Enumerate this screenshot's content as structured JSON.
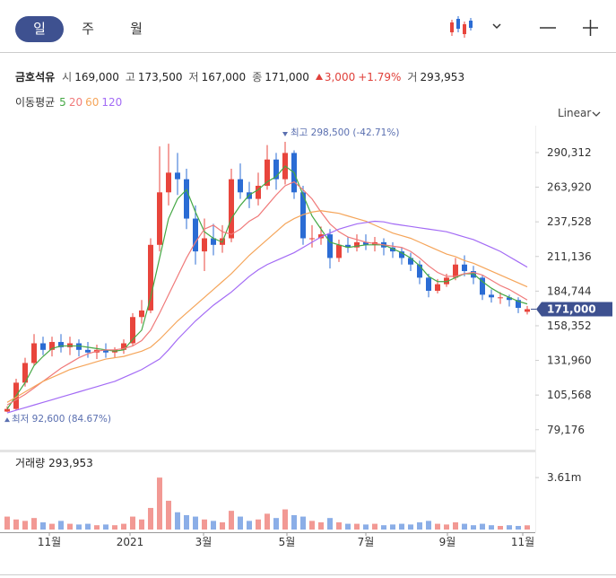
{
  "tabs": [
    "일",
    "주",
    "월"
  ],
  "header": {
    "name": "금호석유",
    "open_label": "시",
    "open": "169,000",
    "high_label": "고",
    "high": "173,500",
    "low_label": "저",
    "low": "167,000",
    "close_label": "종",
    "close": "171,000",
    "change": "3,000",
    "change_pct": "+1.79%",
    "volume_label": "거",
    "volume": "293,953"
  },
  "ma_label": "이동평균",
  "scale_mode": "Linear",
  "chart_data": {
    "type": "candlestick",
    "up_color": "#e8453c",
    "down_color": "#2b6cd4",
    "candles": [
      {
        "open": 93000,
        "high": 97000,
        "low": 92600,
        "close": 95000
      },
      {
        "open": 95000,
        "high": 118000,
        "low": 94000,
        "close": 115000
      },
      {
        "open": 115000,
        "high": 134000,
        "low": 112000,
        "close": 130000
      },
      {
        "open": 130000,
        "high": 152000,
        "low": 128000,
        "close": 145000
      },
      {
        "open": 145000,
        "high": 150000,
        "low": 136000,
        "close": 140000
      },
      {
        "open": 140000,
        "high": 150000,
        "low": 135000,
        "close": 146000
      },
      {
        "open": 146000,
        "high": 152000,
        "low": 138000,
        "close": 142000
      },
      {
        "open": 142000,
        "high": 150000,
        "low": 136000,
        "close": 145000
      },
      {
        "open": 145000,
        "high": 148000,
        "low": 135000,
        "close": 140000
      },
      {
        "open": 140000,
        "high": 146000,
        "low": 134000,
        "close": 138000
      },
      {
        "open": 138000,
        "high": 144000,
        "low": 133000,
        "close": 140000
      },
      {
        "open": 140000,
        "high": 145000,
        "low": 134000,
        "close": 138000
      },
      {
        "open": 138000,
        "high": 142000,
        "low": 134000,
        "close": 140000
      },
      {
        "open": 140000,
        "high": 148000,
        "low": 137000,
        "close": 145000
      },
      {
        "open": 145000,
        "high": 168000,
        "low": 143000,
        "close": 165000
      },
      {
        "open": 165000,
        "high": 178000,
        "low": 160000,
        "close": 170000
      },
      {
        "open": 170000,
        "high": 225000,
        "low": 168000,
        "close": 220000
      },
      {
        "open": 220000,
        "high": 295000,
        "low": 215000,
        "close": 260000
      },
      {
        "open": 260000,
        "high": 297000,
        "low": 250000,
        "close": 275000
      },
      {
        "open": 275000,
        "high": 290000,
        "low": 258000,
        "close": 270000
      },
      {
        "open": 270000,
        "high": 278000,
        "low": 232000,
        "close": 240000
      },
      {
        "open": 240000,
        "high": 250000,
        "low": 205000,
        "close": 215000
      },
      {
        "open": 215000,
        "high": 240000,
        "low": 200000,
        "close": 225000
      },
      {
        "open": 225000,
        "high": 236000,
        "low": 212000,
        "close": 220000
      },
      {
        "open": 220000,
        "high": 235000,
        "low": 214000,
        "close": 225000
      },
      {
        "open": 225000,
        "high": 278000,
        "low": 222000,
        "close": 270000
      },
      {
        "open": 270000,
        "high": 282000,
        "low": 255000,
        "close": 260000
      },
      {
        "open": 260000,
        "high": 268000,
        "low": 248000,
        "close": 255000
      },
      {
        "open": 255000,
        "high": 275000,
        "low": 250000,
        "close": 265000
      },
      {
        "open": 265000,
        "high": 296000,
        "low": 262000,
        "close": 285000
      },
      {
        "open": 285000,
        "high": 290000,
        "low": 262000,
        "close": 270000
      },
      {
        "open": 270000,
        "high": 298500,
        "low": 266000,
        "close": 290000
      },
      {
        "open": 290000,
        "high": 292000,
        "low": 255000,
        "close": 260000
      },
      {
        "open": 260000,
        "high": 265000,
        "low": 220000,
        "close": 225000
      },
      {
        "open": 225000,
        "high": 235000,
        "low": 218000,
        "close": 225000
      },
      {
        "open": 225000,
        "high": 234000,
        "low": 220000,
        "close": 228000
      },
      {
        "open": 228000,
        "high": 232000,
        "low": 202000,
        "close": 210000
      },
      {
        "open": 210000,
        "high": 224000,
        "low": 207000,
        "close": 220000
      },
      {
        "open": 220000,
        "high": 226000,
        "low": 214000,
        "close": 218000
      },
      {
        "open": 218000,
        "high": 228000,
        "low": 215000,
        "close": 222000
      },
      {
        "open": 222000,
        "high": 228000,
        "low": 216000,
        "close": 220000
      },
      {
        "open": 220000,
        "high": 226000,
        "low": 215000,
        "close": 222000
      },
      {
        "open": 222000,
        "high": 225000,
        "low": 212000,
        "close": 218000
      },
      {
        "open": 218000,
        "high": 222000,
        "low": 210000,
        "close": 215000
      },
      {
        "open": 215000,
        "high": 218000,
        "low": 205000,
        "close": 210000
      },
      {
        "open": 210000,
        "high": 214000,
        "low": 200000,
        "close": 205000
      },
      {
        "open": 205000,
        "high": 208000,
        "low": 190000,
        "close": 195000
      },
      {
        "open": 195000,
        "high": 198000,
        "low": 180000,
        "close": 185000
      },
      {
        "open": 185000,
        "high": 194000,
        "low": 183000,
        "close": 190000
      },
      {
        "open": 190000,
        "high": 198000,
        "low": 188000,
        "close": 195000
      },
      {
        "open": 195000,
        "high": 210000,
        "low": 193000,
        "close": 205000
      },
      {
        "open": 205000,
        "high": 212000,
        "low": 196000,
        "close": 200000
      },
      {
        "open": 200000,
        "high": 204000,
        "low": 190000,
        "close": 195000
      },
      {
        "open": 195000,
        "high": 197000,
        "low": 178000,
        "close": 182000
      },
      {
        "open": 182000,
        "high": 186000,
        "low": 176000,
        "close": 180000
      },
      {
        "open": 180000,
        "high": 184000,
        "low": 175000,
        "close": 180000
      },
      {
        "open": 180000,
        "high": 182000,
        "low": 173000,
        "close": 178000
      },
      {
        "open": 178000,
        "high": 180000,
        "low": 168000,
        "close": 172000
      },
      {
        "open": 169000,
        "high": 173500,
        "low": 167000,
        "close": 171000
      }
    ],
    "series": [
      {
        "name": "5",
        "color": "#45a845",
        "values": [
          95000,
          105000,
          115000,
          128000,
          135000,
          141000,
          143000,
          143000,
          143000,
          142000,
          141000,
          140000,
          139000,
          140000,
          148000,
          155000,
          180000,
          210000,
          240000,
          255000,
          262000,
          245000,
          230000,
          225000,
          222000,
          240000,
          250000,
          258000,
          262000,
          268000,
          272000,
          280000,
          275000,
          258000,
          242000,
          232000,
          222000,
          220000,
          218000,
          219000,
          220000,
          220000,
          220000,
          217000,
          214000,
          210000,
          204000,
          196000,
          192000,
          192000,
          195000,
          198000,
          198000,
          192000,
          187000,
          183000,
          180000,
          177000,
          175000
        ]
      },
      {
        "name": "20",
        "color": "#f07a7a",
        "values": [
          98000,
          102000,
          106000,
          111000,
          116000,
          121000,
          126000,
          130000,
          134000,
          137000,
          139000,
          140000,
          140000,
          141000,
          143000,
          147000,
          155000,
          168000,
          182000,
          196000,
          210000,
          222000,
          232000,
          235000,
          230000,
          228000,
          232000,
          238000,
          242000,
          250000,
          258000,
          265000,
          268000,
          262000,
          255000,
          245000,
          236000,
          230000,
          226000,
          224000,
          222000,
          221000,
          220000,
          219000,
          218000,
          215000,
          210000,
          204000,
          199000,
          196000,
          196000,
          198000,
          199000,
          197000,
          193000,
          189000,
          186000,
          182000,
          178000
        ]
      },
      {
        "name": "60",
        "color": "#f5a55a",
        "values": [
          100000,
          104000,
          108000,
          112000,
          116000,
          119000,
          122000,
          125000,
          127000,
          129000,
          131000,
          133000,
          134000,
          135000,
          137000,
          139000,
          142000,
          148000,
          155000,
          162000,
          168000,
          174000,
          180000,
          186000,
          192000,
          198000,
          205000,
          212000,
          218000,
          224000,
          230000,
          236000,
          240000,
          243000,
          245000,
          246000,
          245000,
          244000,
          242000,
          240000,
          238000,
          235000,
          232000,
          229000,
          227000,
          225000,
          222000,
          219000,
          216000,
          213000,
          211000,
          208000,
          206000,
          203000,
          200000,
          197000,
          194000,
          191000,
          188000
        ]
      },
      {
        "name": "120",
        "color": "#a36bf5",
        "values": [
          92000,
          94000,
          96000,
          98000,
          100000,
          102000,
          104000,
          106000,
          108000,
          110000,
          112000,
          114000,
          116000,
          119000,
          122000,
          125000,
          129000,
          133000,
          140000,
          148000,
          155000,
          162000,
          168000,
          174000,
          179000,
          184000,
          190000,
          196000,
          201000,
          205000,
          208000,
          211000,
          214000,
          218000,
          222000,
          226000,
          229000,
          232000,
          234000,
          236000,
          237000,
          238000,
          237500,
          236000,
          235000,
          234000,
          233000,
          232000,
          231000,
          230000,
          228000,
          226000,
          224000,
          221000,
          218000,
          215000,
          211000,
          207000,
          203000
        ]
      }
    ],
    "ylim": [
      71500,
      310800
    ],
    "yticks": [
      {
        "value": 290312,
        "label": "290,312"
      },
      {
        "value": 263920,
        "label": "263,920"
      },
      {
        "value": 237528,
        "label": "237,528"
      },
      {
        "value": 211136,
        "label": "211,136"
      },
      {
        "value": 184744,
        "label": "184,744"
      },
      {
        "value": 158352,
        "label": "158,352"
      },
      {
        "value": 131960,
        "label": "131,960"
      },
      {
        "value": 105568,
        "label": "105,568"
      },
      {
        "value": 79176,
        "label": "79,176"
      }
    ],
    "last_price": {
      "value": 171000,
      "label": "171,000"
    },
    "high_marker": "최고 298,500 (-42.71%)",
    "low_marker": "최저 92,600 (84.67%)",
    "x_labels": [
      "11월",
      "2021",
      "3월",
      "5월",
      "7월",
      "9월",
      "11월"
    ],
    "volume": {
      "label": "거래량",
      "value_label": "293,953",
      "ylim": [
        0,
        5300000
      ],
      "yticks": [
        {
          "value": 3610000,
          "label": "3.61m"
        }
      ],
      "values": [
        900000,
        700000,
        600000,
        800000,
        500000,
        400000,
        600000,
        400000,
        350000,
        400000,
        300000,
        350000,
        300000,
        400000,
        900000,
        700000,
        1500000,
        3610000,
        2000000,
        1200000,
        1000000,
        900000,
        700000,
        600000,
        500000,
        1300000,
        900000,
        600000,
        700000,
        1100000,
        800000,
        1400000,
        1000000,
        900000,
        600000,
        500000,
        800000,
        500000,
        400000,
        400000,
        350000,
        400000,
        300000,
        350000,
        400000,
        350000,
        500000,
        600000,
        400000,
        350000,
        500000,
        400000,
        300000,
        400000,
        300000,
        250000,
        300000,
        250000,
        293953
      ]
    }
  }
}
